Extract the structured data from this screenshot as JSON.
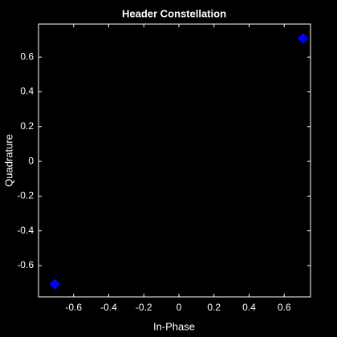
{
  "chart_data": {
    "type": "scatter",
    "title": "Header Constellation",
    "x_label": "In-Phase",
    "y_label": "Quadrature",
    "series": [
      {
        "color": "#0000ff",
        "x": [
          -0.707,
          0.707
        ],
        "values": [
          -0.707,
          0.707
        ]
      }
    ],
    "xlim": [
      -0.8,
      0.75
    ],
    "ylim": [
      -0.78,
      0.79
    ],
    "xticks": [
      -0.6,
      -0.4,
      -0.2,
      0,
      0.2,
      0.4,
      0.6
    ],
    "yticks": [
      -0.6,
      -0.4,
      -0.2,
      0,
      0.2,
      0.4,
      0.6
    ]
  }
}
